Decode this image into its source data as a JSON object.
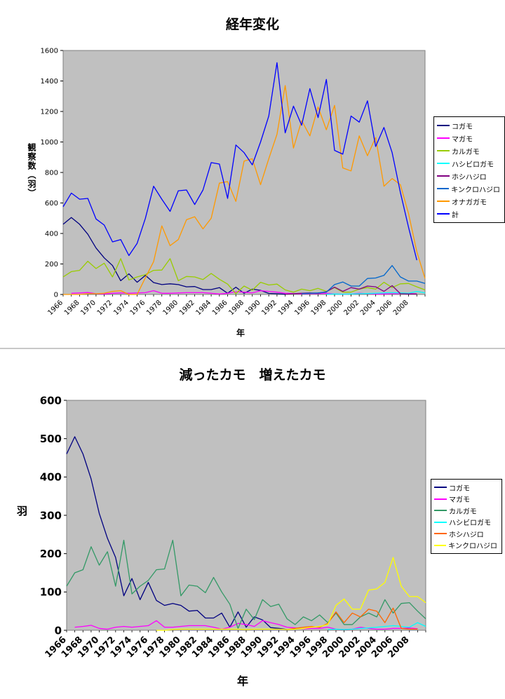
{
  "chart_data": [
    {
      "type": "line",
      "title": "経年変化",
      "xlabel": "年",
      "ylabel": "観察数（羽）",
      "ylim": [
        0,
        1600
      ],
      "yticks": [
        0,
        200,
        400,
        600,
        800,
        1000,
        1200,
        1400,
        1600
      ],
      "xlim": [
        1966,
        2010
      ],
      "xticks": [
        1966,
        1968,
        1970,
        1972,
        1974,
        1976,
        1978,
        1980,
        1982,
        1984,
        1986,
        1988,
        1990,
        1992,
        1994,
        1996,
        1998,
        2000,
        2002,
        2004,
        2006,
        2008
      ],
      "grid": false,
      "background": "#c0c0c0",
      "legend_position": "right",
      "series": [
        {
          "name": "コガモ",
          "color": "#000080",
          "start": 1966,
          "values": [
            460,
            505,
            460,
            395,
            305,
            240,
            190,
            90,
            135,
            80,
            125,
            78,
            65,
            70,
            65,
            50,
            52,
            32,
            32,
            45,
            8,
            48,
            8,
            35,
            27,
            7,
            5,
            2
          ]
        },
        {
          "name": "マガモ",
          "color": "#ff00ff",
          "start": 1967,
          "values": [
            8,
            10,
            13,
            5,
            3,
            8,
            10,
            8,
            10,
            12,
            25,
            8,
            8,
            10,
            12,
            12,
            12,
            8,
            3,
            8,
            18,
            15,
            10,
            25,
            20,
            15,
            8,
            6,
            4,
            5,
            5,
            8,
            3,
            2,
            3,
            8,
            5,
            3,
            3,
            5,
            5,
            6,
            4
          ]
        },
        {
          "name": "カルガモ",
          "color": "#99cc00",
          "start": 1966,
          "values": [
            115,
            150,
            158,
            218,
            170,
            205,
            115,
            235,
            95,
            115,
            130,
            158,
            160,
            235,
            90,
            118,
            115,
            98,
            138,
            100,
            68,
            5,
            55,
            28,
            80,
            62,
            68,
            30,
            15,
            35,
            25,
            40,
            20,
            45,
            15,
            15,
            35,
            45,
            35,
            80,
            45,
            70,
            72,
            50,
            30
          ]
        },
        {
          "name": "ハシビロガモ",
          "color": "#00ffff",
          "start": 1998,
          "values": [
            2,
            3,
            2,
            3,
            5,
            6,
            8,
            10,
            12,
            10,
            8,
            20,
            10
          ]
        },
        {
          "name": "ホシハジロ",
          "color": "#800080",
          "start": 1993,
          "values": [
            2,
            5,
            8,
            10,
            8,
            18,
            48,
            20,
            45,
            35,
            55,
            50,
            20,
            58,
            5,
            3,
            3
          ]
        },
        {
          "name": "キンクロハジロ",
          "color": "#0066cc",
          "start": 1995,
          "values": [
            5,
            8,
            10,
            15,
            65,
            82,
            55,
            55,
            105,
            108,
            125,
            190,
            115,
            88,
            88,
            72
          ]
        },
        {
          "name": "オナガガモ",
          "color": "#ff9900",
          "start": 1966,
          "values": [
            0,
            0,
            0,
            5,
            5,
            8,
            20,
            25,
            0,
            0,
            110,
            215,
            450,
            320,
            360,
            490,
            510,
            430,
            500,
            730,
            740,
            610,
            875,
            890,
            720,
            890,
            1050,
            1370,
            960,
            1140,
            1040,
            1230,
            1080,
            1240,
            830,
            810,
            1040,
            910,
            1030,
            710,
            760,
            720,
            530,
            280,
            105
          ]
        },
        {
          "name": "計",
          "color": "#0000ff",
          "start": 1966,
          "values": [
            575,
            665,
            625,
            630,
            495,
            455,
            345,
            360,
            255,
            335,
            500,
            710,
            625,
            545,
            680,
            685,
            590,
            685,
            865,
            855,
            630,
            980,
            930,
            850,
            1000,
            1170,
            1520,
            1060,
            1235,
            1110,
            1350,
            1160,
            1410,
            945,
            920,
            1170,
            1130,
            1270,
            970,
            1095,
            930,
            670,
            440,
            225
          ]
        }
      ]
    },
    {
      "type": "line",
      "title": "減ったカモ　増えたカモ",
      "xlabel": "年",
      "ylabel": "羽",
      "ylim": [
        0,
        600
      ],
      "yticks": [
        0,
        100,
        200,
        300,
        400,
        500,
        600
      ],
      "xlim": [
        1966,
        2010
      ],
      "xticks": [
        1966,
        1968,
        1970,
        1972,
        1974,
        1976,
        1978,
        1980,
        1982,
        1984,
        1986,
        1988,
        1990,
        1992,
        1994,
        1996,
        1998,
        2000,
        2002,
        2004,
        2006,
        2008
      ],
      "grid": false,
      "background": "#c0c0c0",
      "legend_position": "right",
      "series": [
        {
          "name": "コガモ",
          "color": "#000080",
          "start": 1966,
          "values": [
            460,
            505,
            460,
            395,
            305,
            240,
            190,
            90,
            135,
            80,
            125,
            78,
            65,
            70,
            65,
            50,
            52,
            32,
            32,
            45,
            8,
            48,
            8,
            35,
            27,
            7,
            5,
            2
          ]
        },
        {
          "name": "マガモ",
          "color": "#ff00ff",
          "start": 1967,
          "values": [
            8,
            10,
            13,
            5,
            3,
            8,
            10,
            8,
            10,
            12,
            25,
            8,
            8,
            10,
            12,
            12,
            12,
            8,
            3,
            8,
            18,
            15,
            10,
            25,
            20,
            15,
            8,
            6,
            4,
            5,
            5,
            8,
            3,
            2,
            3,
            8,
            5,
            3,
            3,
            5,
            5,
            6,
            4
          ]
        },
        {
          "name": "カルガモ",
          "color": "#339966",
          "start": 1966,
          "values": [
            115,
            150,
            158,
            218,
            170,
            205,
            115,
            235,
            95,
            115,
            130,
            158,
            160,
            235,
            90,
            118,
            115,
            98,
            138,
            100,
            68,
            5,
            55,
            28,
            80,
            62,
            68,
            30,
            15,
            35,
            25,
            40,
            20,
            45,
            15,
            15,
            35,
            45,
            35,
            80,
            45,
            70,
            72,
            50,
            30
          ]
        },
        {
          "name": "ハシビロガモ",
          "color": "#00ffff",
          "start": 1998,
          "values": [
            2,
            3,
            2,
            3,
            5,
            6,
            8,
            10,
            12,
            10,
            8,
            20,
            10
          ]
        },
        {
          "name": "ホシハジロ",
          "color": "#ff6600",
          "start": 1993,
          "values": [
            2,
            5,
            8,
            10,
            8,
            18,
            48,
            20,
            45,
            35,
            55,
            50,
            20,
            58,
            5,
            3,
            3
          ]
        },
        {
          "name": "キンクロハジロ",
          "color": "#ffff00",
          "start": 1977,
          "values": [
            0,
            0,
            2,
            3,
            3,
            3,
            3,
            3,
            3,
            3,
            3,
            2,
            3,
            3,
            3,
            3,
            2,
            3,
            5,
            8,
            10,
            15,
            65,
            82,
            55,
            55,
            105,
            108,
            125,
            190,
            115,
            88,
            88,
            72
          ]
        }
      ]
    }
  ]
}
